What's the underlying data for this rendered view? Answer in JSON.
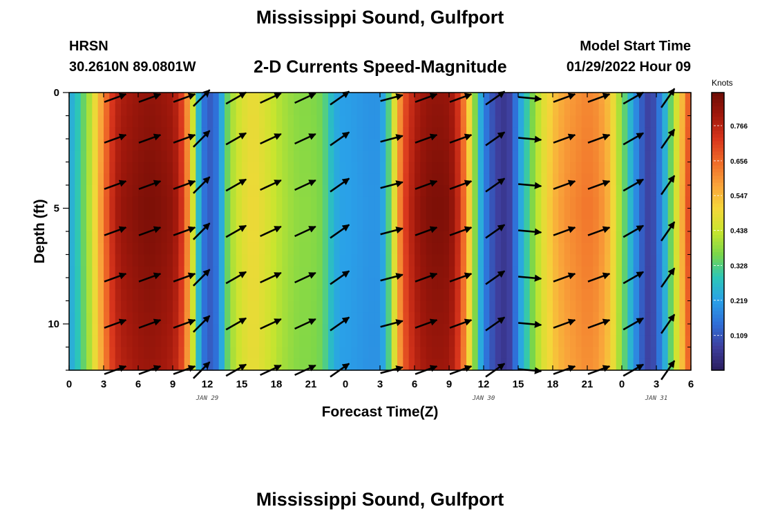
{
  "header": {
    "title": "Mississippi Sound, Gulfport",
    "station": "HRSN",
    "coordinates": "30.2610N  89.0801W",
    "subtitle": "2-D Currents Speed-Magnitude",
    "model_start_label": "Model Start Time",
    "model_start_value": "01/29/2022 Hour 09",
    "footer_title": "Mississippi Sound, Gulfport"
  },
  "chart_data": {
    "type": "heatmap",
    "title": "2-D Currents Speed-Magnitude",
    "xlabel": "Forecast Time(Z)",
    "ylabel": "Depth (ft)",
    "x_tick_labels": [
      "0",
      "3",
      "6",
      "9",
      "12",
      "15",
      "18",
      "21",
      "0",
      "3",
      "6",
      "9",
      "12",
      "15",
      "18",
      "21",
      "0",
      "3",
      "6"
    ],
    "x_range_hours": [
      0,
      54
    ],
    "day_labels": [
      {
        "label": "JAN 29",
        "hour": 12
      },
      {
        "label": "JAN 30",
        "hour": 36
      },
      {
        "label": "JAN 31",
        "hour": 51
      }
    ],
    "y_tick_labels": [
      "0",
      "5",
      "10"
    ],
    "y_tick_values": [
      0,
      5,
      10
    ],
    "ylim": [
      0,
      12
    ],
    "y_inverted": true,
    "colorbar": {
      "unit": "Knots",
      "tick_labels": [
        "0.766",
        "0.656",
        "0.547",
        "0.438",
        "0.328",
        "0.219",
        "0.109"
      ],
      "tick_values": [
        0.766,
        0.656,
        0.547,
        0.438,
        0.328,
        0.219,
        0.109
      ],
      "range": [
        0.0,
        0.87
      ],
      "colors": [
        "#2a1d5e",
        "#3e3f9e",
        "#2f6fd8",
        "#2aa1e8",
        "#2cc6b8",
        "#7ad64a",
        "#c9e52e",
        "#f5d63a",
        "#f9a23a",
        "#ef6a28",
        "#d8351c",
        "#a1180c",
        "#6c0c05"
      ]
    },
    "speed_profile": {
      "hours": [
        0,
        0.5,
        1,
        1.5,
        2,
        2.5,
        3,
        3.5,
        4,
        4.5,
        5,
        6,
        7,
        8,
        9,
        9.5,
        10,
        10.5,
        11,
        11.5,
        12,
        12.5,
        13,
        13.5,
        14,
        15,
        16,
        17,
        18,
        19,
        20,
        21,
        22,
        22.5,
        23,
        23.5,
        24,
        25,
        26,
        27,
        27.5,
        28,
        28.5,
        29,
        30,
        31,
        32,
        33,
        33.5,
        34,
        34.5,
        35,
        35.5,
        36,
        37,
        38,
        38.5,
        39,
        40,
        41,
        42,
        43,
        44,
        45,
        46,
        47,
        47.5,
        48,
        48.5,
        49,
        49.5,
        50,
        50.5,
        51,
        51.5,
        52,
        52.5,
        53,
        53.5,
        54
      ],
      "speeds": [
        0.23,
        0.27,
        0.32,
        0.38,
        0.45,
        0.55,
        0.63,
        0.72,
        0.78,
        0.81,
        0.82,
        0.84,
        0.85,
        0.84,
        0.82,
        0.78,
        0.7,
        0.55,
        0.35,
        0.18,
        0.12,
        0.12,
        0.18,
        0.3,
        0.4,
        0.47,
        0.5,
        0.47,
        0.43,
        0.4,
        0.38,
        0.38,
        0.36,
        0.3,
        0.25,
        0.22,
        0.22,
        0.21,
        0.2,
        0.2,
        0.26,
        0.4,
        0.55,
        0.7,
        0.8,
        0.84,
        0.85,
        0.84,
        0.8,
        0.72,
        0.6,
        0.45,
        0.3,
        0.18,
        0.08,
        0.05,
        0.1,
        0.2,
        0.34,
        0.46,
        0.55,
        0.6,
        0.62,
        0.64,
        0.62,
        0.55,
        0.45,
        0.38,
        0.3,
        0.22,
        0.15,
        0.09,
        0.07,
        0.12,
        0.2,
        0.3,
        0.4,
        0.52,
        0.62,
        0.75
      ],
      "depth_increment_per_ft": 0.012
    },
    "vectors": {
      "rows_depth_ft": [
        0,
        2,
        4,
        6,
        8,
        10,
        12
      ],
      "hours": [
        3,
        6,
        9,
        10.5,
        13.5,
        16.5,
        19.5,
        22.5,
        27,
        30,
        33,
        36,
        39,
        42,
        45,
        48,
        51
      ],
      "angles_deg": [
        -20,
        -20,
        -20,
        -45,
        -30,
        -25,
        -25,
        -35,
        -15,
        -20,
        -20,
        -35,
        5,
        -20,
        -20,
        -30,
        -55
      ],
      "lengths_hours": [
        2,
        2,
        2,
        2,
        2,
        2,
        2,
        2,
        2,
        2,
        2,
        2,
        2,
        2,
        2,
        2,
        2
      ]
    }
  }
}
